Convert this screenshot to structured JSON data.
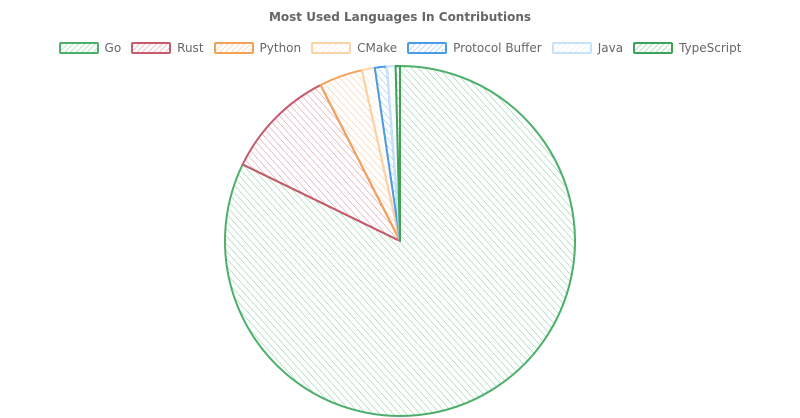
{
  "chart_data": {
    "type": "pie",
    "title": "Most Used Languages In Contributions",
    "legend_position": "top",
    "style": "hand-drawn hatched",
    "slices": [
      {
        "label": "Go",
        "value": 82.2,
        "color": "#4caf6a"
      },
      {
        "label": "Rust",
        "value": 10.3,
        "color": "#c85a6e"
      },
      {
        "label": "Python",
        "value": 4.0,
        "color": "#f4a259"
      },
      {
        "label": "CMake",
        "value": 1.2,
        "color": "#fcd3a8"
      },
      {
        "label": "Protocol Buffer",
        "value": 1.1,
        "color": "#4a9be8"
      },
      {
        "label": "Java",
        "value": 0.8,
        "color": "#c7e2fa"
      },
      {
        "label": "TypeScript",
        "value": 0.4,
        "color": "#3ea356"
      }
    ]
  }
}
